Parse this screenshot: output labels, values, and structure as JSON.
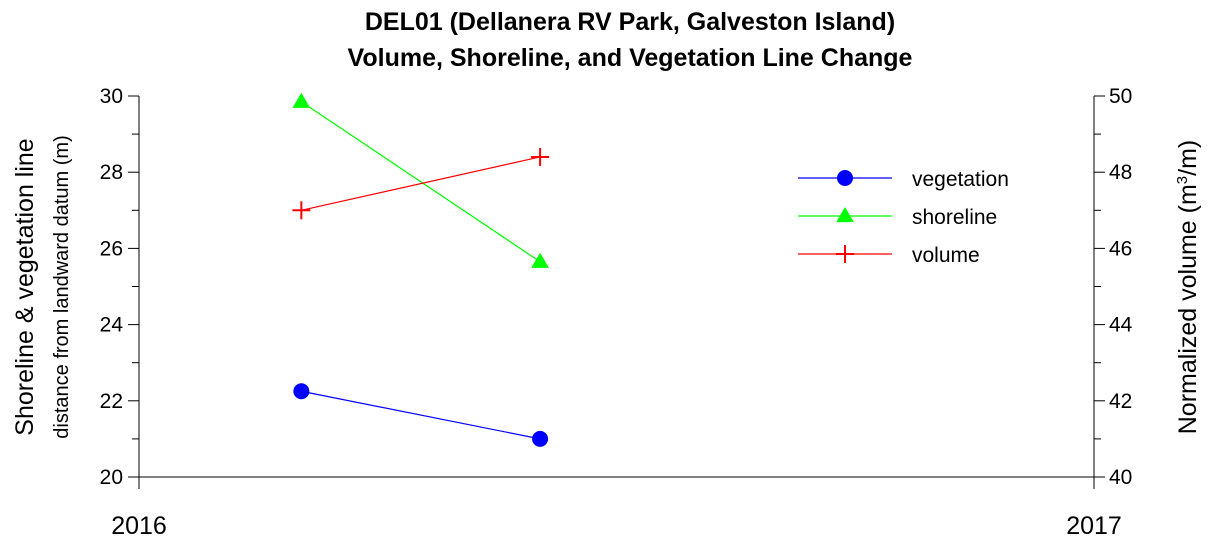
{
  "chart_data": {
    "type": "line",
    "title": "DEL01 (Dellanera RV Park, Galveston Island)",
    "subtitle": "Volume, Shoreline, and Vegetation Line Change",
    "y_left": {
      "label": "Shoreline & vegetation line",
      "sublabel": "distance from landward datum (m)",
      "ylim": [
        20,
        30
      ],
      "ticks": [
        20,
        22,
        24,
        26,
        28,
        30
      ]
    },
    "y_right": {
      "label_prefix": "Normalized volume (m",
      "label_sup": "3",
      "label_suffix": "/m)",
      "ylim": [
        40,
        50
      ],
      "ticks": [
        40,
        42,
        44,
        46,
        48,
        50
      ]
    },
    "x_axis": {
      "xlim": [
        2016.0,
        2017.0
      ],
      "ticks": [
        2016,
        2017
      ],
      "tick_labels": [
        "2016",
        "2017"
      ]
    },
    "series": [
      {
        "name": "vegetation",
        "axis": "left",
        "color": "#0000ff",
        "marker": "circle",
        "x": [
          2016.17,
          2016.42
        ],
        "y": [
          22.25,
          21.0
        ]
      },
      {
        "name": "shoreline",
        "axis": "left",
        "color": "#00ff00",
        "marker": "triangle",
        "x": [
          2016.17,
          2016.42
        ],
        "y": [
          29.85,
          25.65
        ]
      },
      {
        "name": "volume",
        "axis": "right",
        "color": "#ff0000",
        "marker": "plus",
        "x": [
          2016.17,
          2016.42
        ],
        "y": [
          47.0,
          48.4
        ]
      }
    ],
    "legend": {
      "placement": "top-right"
    },
    "grid": false
  }
}
